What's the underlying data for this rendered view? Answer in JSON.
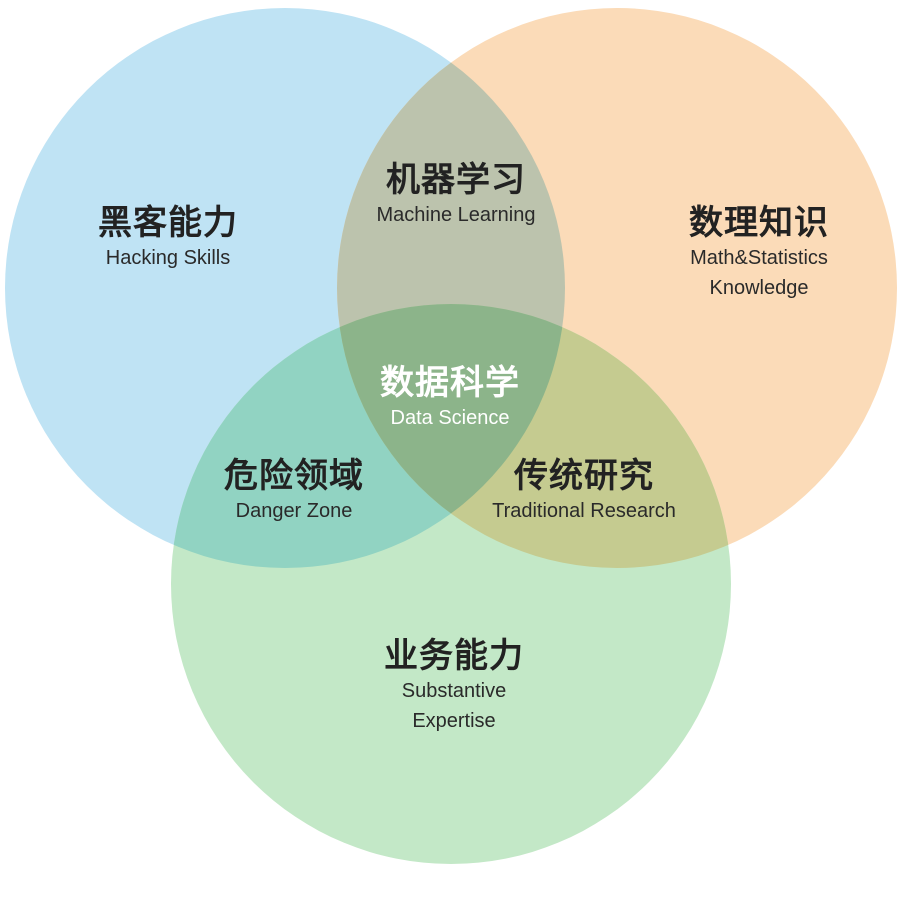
{
  "diagram": {
    "circles": [
      {
        "id": "hacking",
        "zh": "黑客能力",
        "en": "Hacking Skills",
        "color": "#bfe3f4"
      },
      {
        "id": "math",
        "zh": "数理知识",
        "en": "Math&Statistics Knowledge",
        "en_lines": [
          "Math&Statistics",
          "Knowledge"
        ],
        "color": "#fbdbb8"
      },
      {
        "id": "substantive",
        "zh": "业务能力",
        "en": "Substantive Expertise",
        "en_lines": [
          "Substantive",
          "Expertise"
        ],
        "color": "#c3e8c7"
      }
    ],
    "intersections": [
      {
        "id": "machine-learning",
        "zh": "机器学习",
        "en": "Machine Learning",
        "color": "#bcc3ad"
      },
      {
        "id": "danger-zone",
        "zh": "危险领域",
        "en": "Danger Zone",
        "color": "#91d3c2"
      },
      {
        "id": "traditional-research",
        "zh": "传统研究",
        "en": "Traditional Research",
        "color": "#c5cb90"
      },
      {
        "id": "data-science",
        "zh": "数据科学",
        "en": "Data Science",
        "color": "#8cb48a"
      }
    ]
  }
}
